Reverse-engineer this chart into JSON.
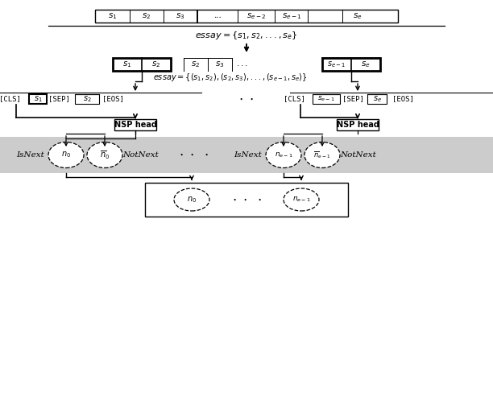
{
  "bg_color": "#ffffff",
  "gray_band_color": "#cccccc",
  "figsize": [
    6.12,
    5.18
  ],
  "dpi": 100,
  "top_sentences": [
    "$s_1$",
    "$s_2$",
    "$s_3$",
    "...",
    "$s_{e-2}$",
    "$s_{e-1}$",
    "$s_e$"
  ],
  "essay_eq1": "$essay = \\{s_1, s_2,...,s_e\\}$",
  "essay_eq2": "$essay = \\{(s_1,s_2),(s_2,s_3),...,(s_{e-1},s_e)\\}$",
  "nsp_label": "NSP head",
  "isnext_label": "IsNext",
  "notnext_label": "NotNext",
  "n0_label": "$n_0$",
  "n0bar_label": "$\\overline{n}_0$",
  "ne1_label": "$n_{e-1}$",
  "ne1bar_label": "$\\overline{n}_{e-1}$",
  "bottom_n0": "$n_0$",
  "bottom_ne": "$n_{e-1}$",
  "dots": "$\\cdot \\ \\cdot \\ \\cdot$"
}
